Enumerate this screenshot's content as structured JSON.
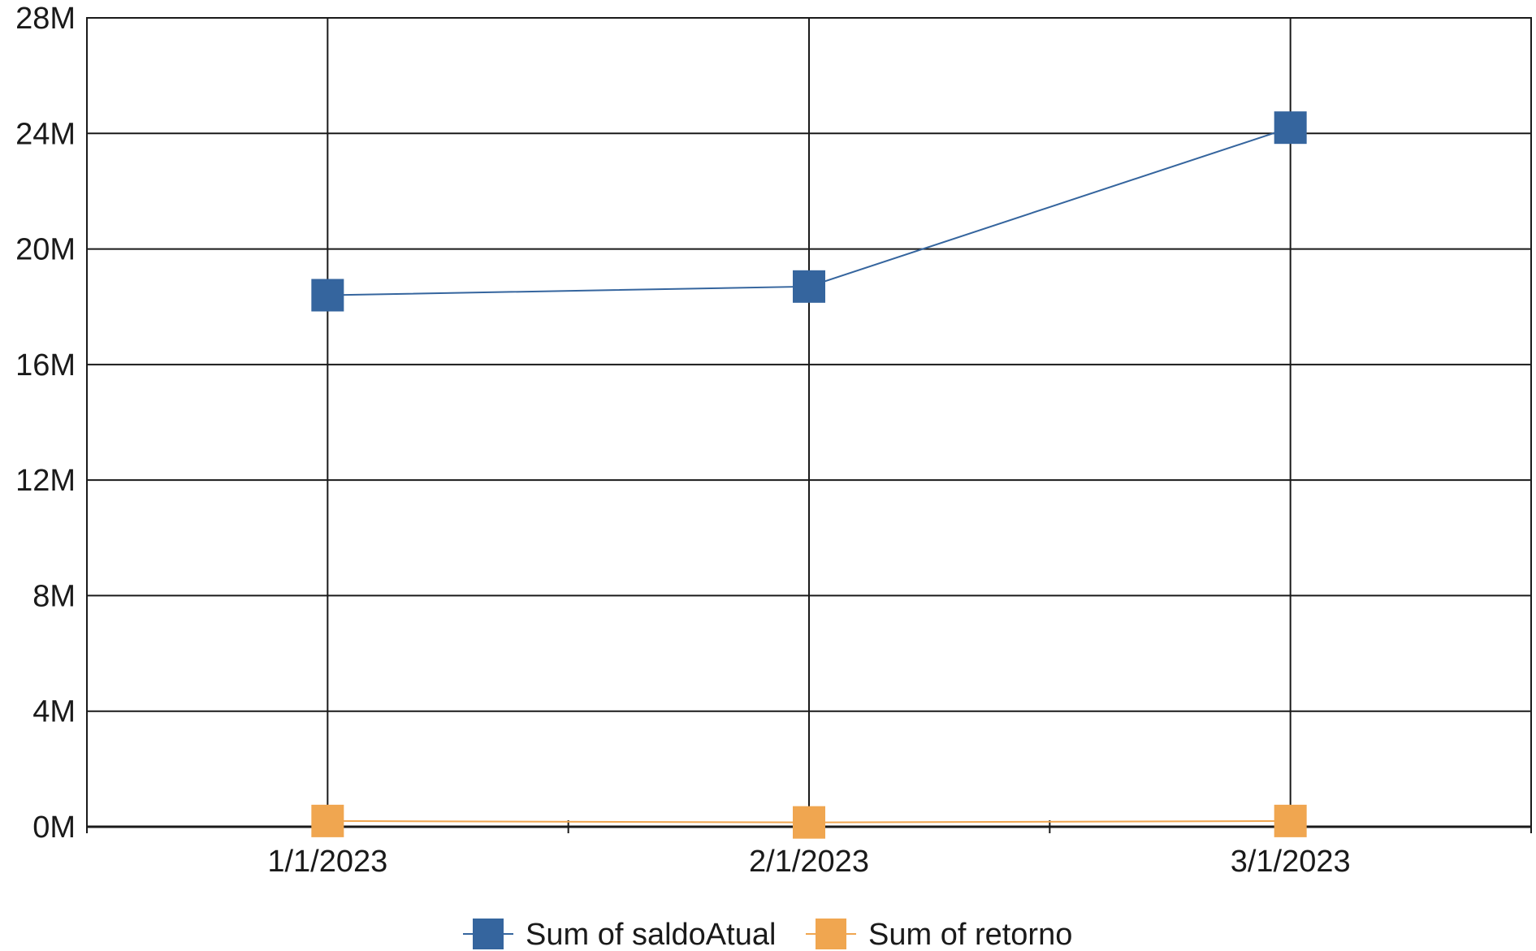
{
  "chart_data": {
    "type": "line",
    "categories": [
      "1/1/2023",
      "2/1/2023",
      "3/1/2023"
    ],
    "series": [
      {
        "name": "Sum of saldoAtual",
        "values": [
          18.4,
          18.7,
          24.2
        ],
        "color": "#35659e"
      },
      {
        "name": "Sum of retorno",
        "values": [
          0.2,
          0.15,
          0.2
        ],
        "color": "#f0a650"
      }
    ],
    "y_ticks": [
      "0M",
      "4M",
      "8M",
      "12M",
      "16M",
      "20M",
      "24M",
      "28M"
    ],
    "ylim": [
      0,
      28
    ],
    "unit": "M",
    "grid": true,
    "marker": "square",
    "legend_position": "bottom"
  }
}
